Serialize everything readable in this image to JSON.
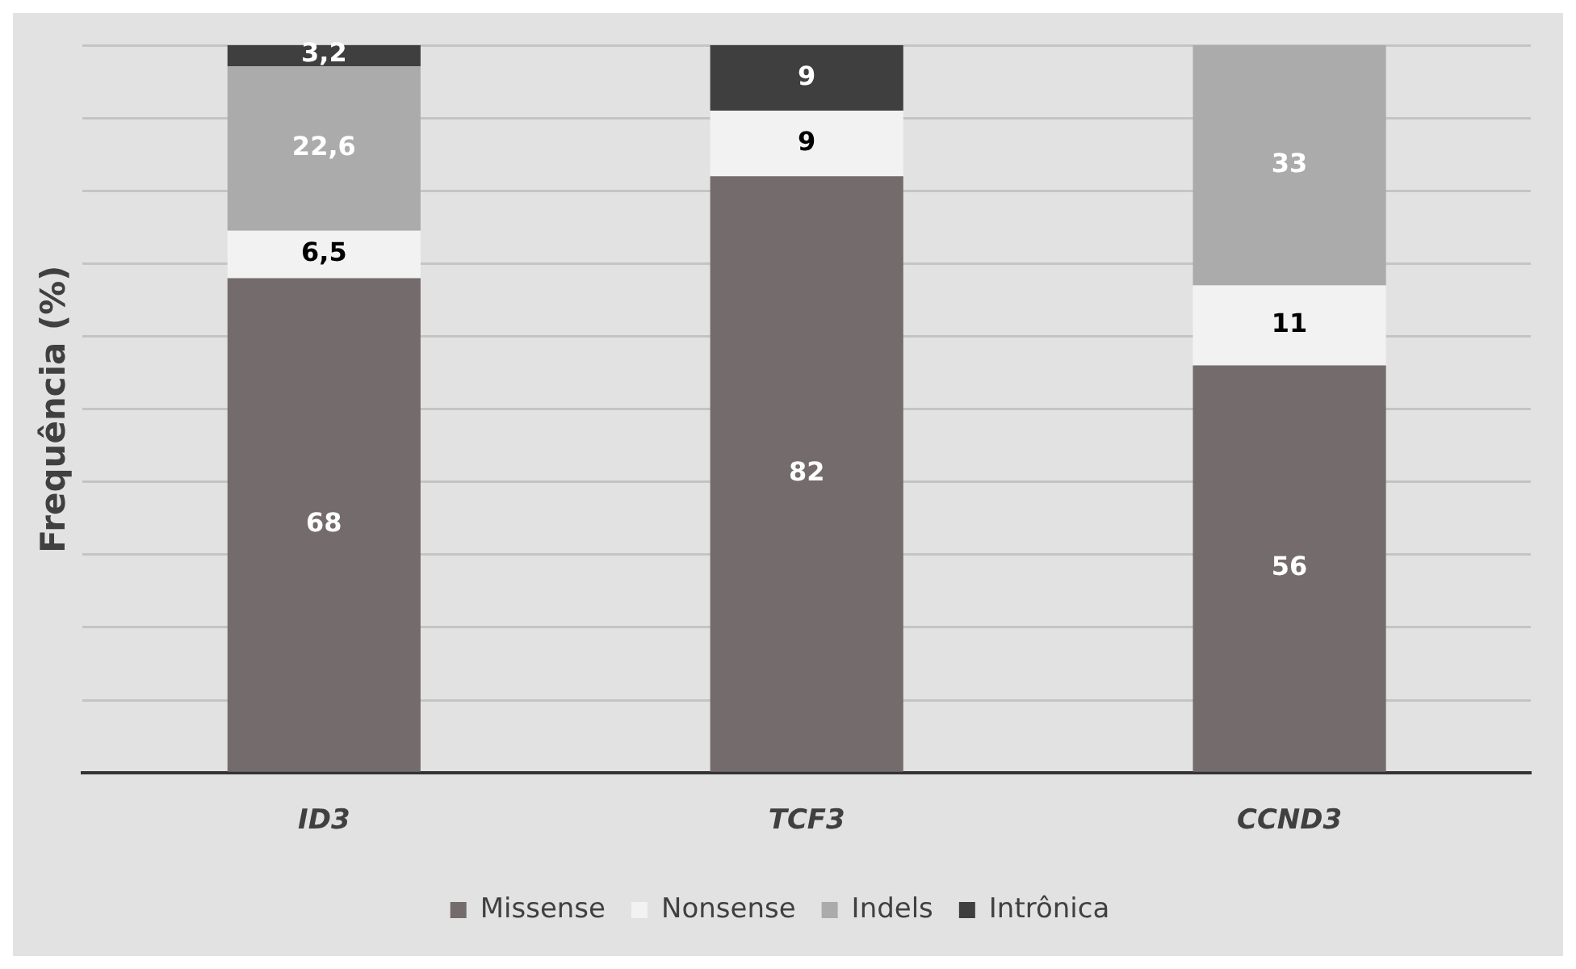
{
  "chart_data": {
    "type": "bar",
    "stacked": true,
    "ylabel": "Frequência (%)",
    "categories": [
      "ID3",
      "TCF3",
      "CCND3"
    ],
    "series": [
      {
        "name": "Missense",
        "color": "#746c6c",
        "values": [
          68,
          82,
          56
        ],
        "value_labels": [
          "68",
          "82",
          "56"
        ]
      },
      {
        "name": "Nonsense",
        "color": "#f2f2f2",
        "values": [
          6.5,
          9,
          11
        ],
        "value_labels": [
          "6,5",
          "9",
          "11"
        ]
      },
      {
        "name": "Indels",
        "color": "#ababab",
        "values": [
          22.6,
          0,
          33
        ],
        "value_labels": [
          "22,6",
          null,
          "33"
        ]
      },
      {
        "name": "Intrônica",
        "color": "#3f3f3f",
        "values": [
          3.2,
          9,
          0
        ],
        "value_labels": [
          "3,2",
          "9",
          null
        ]
      }
    ],
    "ylim": [
      0,
      100
    ],
    "yticks": [
      {
        "value": 0,
        "label": null
      },
      {
        "value": 10,
        "label": null
      },
      {
        "value": 20,
        "label": null
      },
      {
        "value": 30,
        "label": null
      },
      {
        "value": 40,
        "label": null
      },
      {
        "value": 50,
        "label": null
      },
      {
        "value": 60,
        "label": null
      },
      {
        "value": 70,
        "label": null
      },
      {
        "value": 80,
        "label": null
      },
      {
        "value": 90,
        "label": null
      },
      {
        "value": 100,
        "label": null
      }
    ],
    "tick_labels": "x",
    "grid": "y",
    "legend": "bottom"
  }
}
